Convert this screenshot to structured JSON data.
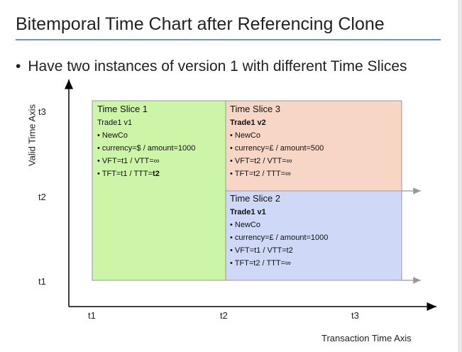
{
  "slide": {
    "title": "Bitemporal Time Chart after Referencing Clone",
    "bullet": "Have two instances of version 1 with different Time Slices"
  },
  "axes": {
    "y_label": "Valid Time Axis",
    "x_label": "Transaction Time Axis",
    "y_ticks": [
      "t3",
      "t2",
      "t1"
    ],
    "x_ticks": [
      "t1",
      "t2",
      "t3"
    ]
  },
  "slices": {
    "s1": {
      "heading": "Time Slice 1",
      "trade": "Trade1 v1",
      "lines": [
        "NewCo",
        "currency=$ / amount=1000",
        "VFT=t1 / VTT=∞"
      ],
      "last_prefix": "TFT=t1 / TTT=",
      "last_bold": "t2"
    },
    "s3": {
      "heading": "Time Slice 3",
      "trade": "Trade1 v2",
      "lines": [
        "NewCo",
        "currency=£ / amount=500",
        "VFT=t2 / VTT=∞",
        "TFT=t2 / TTT=∞"
      ]
    },
    "s2": {
      "heading": "Time Slice 2",
      "trade": "Trade1 v1",
      "lines": [
        "NewCo",
        "currency=£ / amount=1000",
        "VFT=t1 / VTT=t2",
        "TFT=t2 / TTT=∞"
      ]
    }
  },
  "colors": {
    "slice1": "#ccf5a8",
    "slice3": "#f8d6c6",
    "slice2": "#cfd8f7",
    "accent_rule": "#6f8fc5"
  }
}
